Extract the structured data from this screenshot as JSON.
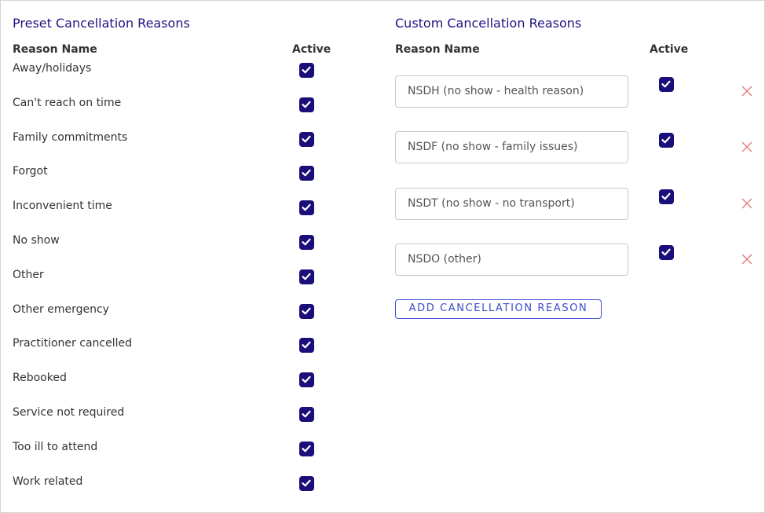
{
  "preset": {
    "title": "Preset Cancellation Reasons",
    "column_name": "Reason Name",
    "column_active": "Active",
    "rows": [
      {
        "name": "Away/holidays",
        "active": true
      },
      {
        "name": "Can't reach on time",
        "active": true
      },
      {
        "name": "Family commitments",
        "active": true
      },
      {
        "name": "Forgot",
        "active": true
      },
      {
        "name": "Inconvenient time",
        "active": true
      },
      {
        "name": "No show",
        "active": true
      },
      {
        "name": "Other",
        "active": true
      },
      {
        "name": "Other emergency",
        "active": true
      },
      {
        "name": "Practitioner cancelled",
        "active": true
      },
      {
        "name": "Rebooked",
        "active": true
      },
      {
        "name": "Service not required",
        "active": true
      },
      {
        "name": "Too ill to attend",
        "active": true
      },
      {
        "name": "Work related",
        "active": true
      }
    ]
  },
  "custom": {
    "title": "Custom Cancellation Reasons",
    "column_name": "Reason Name",
    "column_active": "Active",
    "rows": [
      {
        "name": "NSDH (no show - health reason)",
        "active": true
      },
      {
        "name": "NSDF (no show - family issues)",
        "active": true
      },
      {
        "name": "NSDT (no show - no transport)",
        "active": true
      },
      {
        "name": "NSDO (other)",
        "active": true
      }
    ],
    "add_button": "ADD CANCELLATION REASON"
  }
}
